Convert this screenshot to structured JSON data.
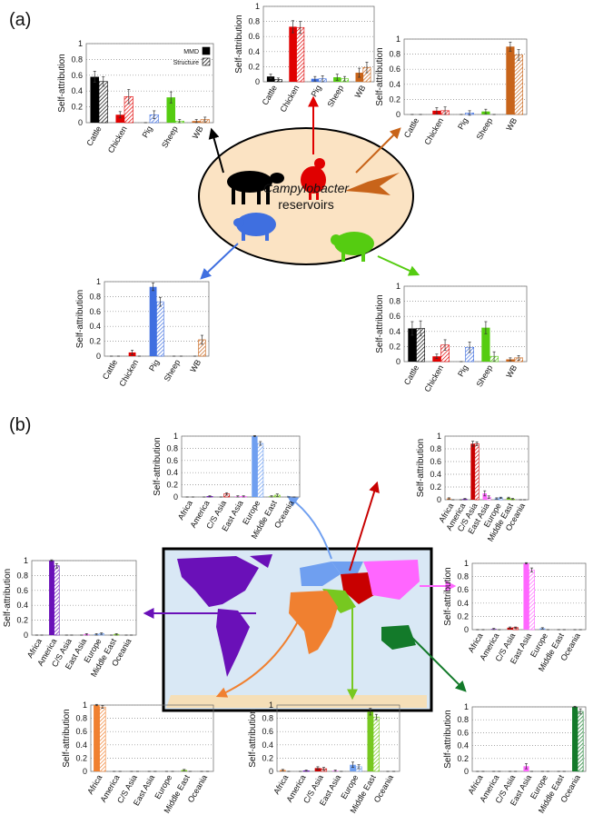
{
  "panels": [
    "(a)",
    "(b)"
  ],
  "center_label": {
    "italic": "Campylobacter",
    "text": "reservoirs"
  },
  "chart_data": [
    {
      "type": "bar",
      "ylabel": "Self-attribution",
      "ylim": [
        0,
        1
      ],
      "yticks": [
        0,
        0.2,
        0.4,
        0.6,
        0.8,
        1
      ],
      "grid": true,
      "legend": "upper right",
      "categories": [
        "Cattle",
        "Chicken",
        "Pig",
        "Sheep",
        "WB"
      ],
      "colors": [
        "#000000",
        "#e00000",
        "#3f6fe0",
        "#55cc11",
        "#c8641a"
      ],
      "series": [
        {
          "name": "MMD",
          "color": "#000000",
          "values": [
            0.58,
            0.1,
            0,
            0.32,
            0.02
          ],
          "errors": [
            0.07,
            0.04,
            0,
            0.07,
            0.02
          ]
        },
        {
          "name": "Structure",
          "color": "#000000",
          "values": [
            0.52,
            0.33,
            0.1,
            0.02,
            0.04
          ],
          "errors": [
            0.06,
            0.09,
            0.05,
            0.02,
            0.03
          ]
        }
      ]
    },
    {
      "type": "bar",
      "ylabel": "Self-attribution",
      "ylim": [
        0,
        1
      ],
      "yticks": [
        0,
        0.2,
        0.4,
        0.6,
        0.8,
        1
      ],
      "grid": true,
      "categories": [
        "Cattle",
        "Chicken",
        "Pig",
        "Sheep",
        "WB"
      ],
      "colors": [
        "#000000",
        "#e00000",
        "#3f6fe0",
        "#55cc11",
        "#c8641a"
      ],
      "series": [
        {
          "values": [
            0.07,
            0.73,
            0.04,
            0.06,
            0.12
          ],
          "errors": [
            0.03,
            0.08,
            0.03,
            0.04,
            0.06
          ]
        },
        {
          "values": [
            0.03,
            0.72,
            0.04,
            0.04,
            0.19
          ],
          "errors": [
            0.02,
            0.08,
            0.04,
            0.03,
            0.07
          ]
        }
      ]
    },
    {
      "type": "bar",
      "ylabel": "Self-attribution",
      "ylim": [
        0,
        1
      ],
      "yticks": [
        0,
        0.2,
        0.4,
        0.6,
        0.8,
        1
      ],
      "grid": true,
      "categories": [
        "Cattle",
        "Chicken",
        "Pig",
        "Sheep",
        "WB"
      ],
      "colors": [
        "#000000",
        "#e00000",
        "#3f6fe0",
        "#55cc11",
        "#c8641a"
      ],
      "series": [
        {
          "values": [
            0,
            0.05,
            0,
            0.04,
            0.9
          ],
          "errors": [
            0,
            0.04,
            0,
            0.03,
            0.06
          ]
        },
        {
          "values": [
            0,
            0.05,
            0.02,
            0,
            0.79
          ],
          "errors": [
            0,
            0.05,
            0.03,
            0,
            0.07
          ]
        }
      ]
    },
    {
      "type": "bar",
      "ylabel": "Self-attribution",
      "ylim": [
        0,
        1
      ],
      "yticks": [
        0,
        0.2,
        0.4,
        0.6,
        0.8,
        1
      ],
      "grid": true,
      "categories": [
        "Cattle",
        "Chicken",
        "Pig",
        "Sheep",
        "WB"
      ],
      "colors": [
        "#000000",
        "#e00000",
        "#3f6fe0",
        "#55cc11",
        "#c8641a"
      ],
      "series": [
        {
          "values": [
            0,
            0.05,
            0.93,
            0,
            0
          ],
          "errors": [
            0,
            0.03,
            0.05,
            0,
            0
          ]
        },
        {
          "values": [
            0,
            0,
            0.73,
            0,
            0.22
          ],
          "errors": [
            0,
            0,
            0.06,
            0,
            0.06
          ]
        }
      ]
    },
    {
      "type": "bar",
      "ylabel": "Self-attribution",
      "ylim": [
        0,
        1
      ],
      "yticks": [
        0,
        0.2,
        0.4,
        0.6,
        0.8,
        1
      ],
      "grid": true,
      "categories": [
        "Cattle",
        "Chicken",
        "Pig",
        "Sheep",
        "WB"
      ],
      "colors": [
        "#000000",
        "#e00000",
        "#3f6fe0",
        "#55cc11",
        "#c8641a"
      ],
      "series": [
        {
          "values": [
            0.44,
            0.07,
            0,
            0.45,
            0.03
          ],
          "errors": [
            0.09,
            0.03,
            0,
            0.08,
            0.02
          ]
        },
        {
          "values": [
            0.44,
            0.22,
            0.19,
            0.07,
            0.05
          ],
          "errors": [
            0.1,
            0.07,
            0.07,
            0.06,
            0.03
          ]
        }
      ]
    },
    {
      "type": "bar",
      "ylabel": "Self-attribution",
      "ylim": [
        0,
        1
      ],
      "yticks": [
        0,
        0.2,
        0.4,
        0.6,
        0.8,
        1
      ],
      "grid": true,
      "categories": [
        "Africa",
        "America",
        "C/S Asia",
        "East Asia",
        "Europe",
        "Middle East",
        "Oceania"
      ],
      "colors": [
        "#f08030",
        "#6a10b8",
        "#c80000",
        "#ff66ff",
        "#6f9ff0",
        "#77c820",
        "#137a2a"
      ],
      "series": [
        {
          "values": [
            0,
            0,
            0,
            0.01,
            1,
            0.01,
            0
          ],
          "errors": [
            0,
            0,
            0,
            0.01,
            0.01,
            0.01,
            0
          ]
        },
        {
          "values": [
            0,
            0.01,
            0.05,
            0.01,
            0.88,
            0.03,
            0
          ],
          "errors": [
            0,
            0.01,
            0.02,
            0.01,
            0.03,
            0.02,
            0
          ]
        }
      ]
    },
    {
      "type": "bar",
      "ylabel": "Self-attribution",
      "ylim": [
        0,
        1
      ],
      "yticks": [
        0,
        0.2,
        0.4,
        0.6,
        0.8,
        1
      ],
      "grid": true,
      "categories": [
        "Africa",
        "America",
        "C/S Asia",
        "East Asia",
        "Europe",
        "Middle East",
        "Oceania"
      ],
      "colors": [
        "#f08030",
        "#6a10b8",
        "#c80000",
        "#ff66ff",
        "#6f9ff0",
        "#77c820",
        "#137a2a"
      ],
      "series": [
        {
          "values": [
            0.02,
            0,
            0.88,
            0.1,
            0.02,
            0.03,
            0
          ],
          "errors": [
            0.01,
            0,
            0.04,
            0.04,
            0.01,
            0.01,
            0
          ]
        },
        {
          "values": [
            0,
            0.01,
            0.88,
            0.04,
            0.03,
            0.01,
            0
          ],
          "errors": [
            0,
            0.01,
            0.03,
            0.02,
            0.01,
            0.01,
            0
          ]
        }
      ]
    },
    {
      "type": "bar",
      "ylabel": "Self-attribution",
      "ylim": [
        0,
        1
      ],
      "yticks": [
        0,
        0.2,
        0.4,
        0.6,
        0.8,
        1
      ],
      "grid": true,
      "categories": [
        "Africa",
        "America",
        "C/S Asia",
        "East Asia",
        "Europe",
        "Middle East",
        "Oceania"
      ],
      "colors": [
        "#f08030",
        "#6a10b8",
        "#c80000",
        "#ff66ff",
        "#6f9ff0",
        "#77c820",
        "#137a2a"
      ],
      "series": [
        {
          "values": [
            0,
            1,
            0,
            0,
            0.01,
            0,
            0
          ],
          "errors": [
            0,
            0.01,
            0,
            0,
            0.01,
            0,
            0
          ]
        },
        {
          "values": [
            0,
            0.93,
            0,
            0.01,
            0.02,
            0.01,
            0
          ],
          "errors": [
            0,
            0.03,
            0,
            0.01,
            0.01,
            0.01,
            0
          ]
        }
      ]
    },
    {
      "type": "bar",
      "ylabel": "Self-attribution",
      "ylim": [
        0,
        1
      ],
      "yticks": [
        0,
        0.2,
        0.4,
        0.6,
        0.8,
        1
      ],
      "grid": true,
      "categories": [
        "Africa",
        "America",
        "C/S Asia",
        "East Asia",
        "Europe",
        "Middle East",
        "Oceania"
      ],
      "colors": [
        "#f08030",
        "#6a10b8",
        "#c80000",
        "#ff66ff",
        "#6f9ff0",
        "#77c820",
        "#137a2a"
      ],
      "series": [
        {
          "values": [
            0,
            0.01,
            0.03,
            1,
            0.02,
            0,
            0
          ],
          "errors": [
            0,
            0.01,
            0.01,
            0.01,
            0.01,
            0,
            0
          ]
        },
        {
          "values": [
            0,
            0,
            0.03,
            0.9,
            0,
            0,
            0
          ],
          "errors": [
            0,
            0,
            0.01,
            0.03,
            0,
            0,
            0
          ]
        }
      ]
    },
    {
      "type": "bar",
      "ylabel": "Self-attribution",
      "ylim": [
        0,
        1
      ],
      "yticks": [
        0,
        0.2,
        0.4,
        0.6,
        0.8,
        1
      ],
      "grid": true,
      "categories": [
        "Africa",
        "America",
        "C/S Asia",
        "East Asia",
        "Europe",
        "Middle East",
        "Oceania"
      ],
      "colors": [
        "#f08030",
        "#6a10b8",
        "#c80000",
        "#ff66ff",
        "#6f9ff0",
        "#77c820",
        "#137a2a"
      ],
      "series": [
        {
          "values": [
            1,
            0,
            0,
            0,
            0,
            0.02,
            0
          ],
          "errors": [
            0.01,
            0,
            0,
            0,
            0,
            0.01,
            0
          ]
        },
        {
          "values": [
            0.97,
            0,
            0,
            0,
            0,
            0,
            0
          ],
          "errors": [
            0.02,
            0,
            0,
            0,
            0,
            0,
            0
          ]
        }
      ]
    },
    {
      "type": "bar",
      "ylabel": "Self-attribution",
      "ylim": [
        0,
        1
      ],
      "yticks": [
        0,
        0.2,
        0.4,
        0.6,
        0.8,
        1
      ],
      "grid": true,
      "categories": [
        "Africa",
        "America",
        "C/S Asia",
        "East Asia",
        "Europe",
        "Middle East",
        "Oceania"
      ],
      "colors": [
        "#f08030",
        "#6a10b8",
        "#c80000",
        "#ff66ff",
        "#6f9ff0",
        "#77c820",
        "#137a2a"
      ],
      "series": [
        {
          "values": [
            0.02,
            0,
            0.05,
            0.01,
            0.1,
            0.9,
            0
          ],
          "errors": [
            0.01,
            0,
            0.02,
            0.01,
            0.04,
            0.05,
            0
          ]
        },
        {
          "values": [
            0,
            0.01,
            0.04,
            0,
            0.07,
            0.82,
            0
          ],
          "errors": [
            0,
            0.01,
            0.02,
            0,
            0.03,
            0.04,
            0
          ]
        }
      ]
    },
    {
      "type": "bar",
      "ylabel": "Self-attribution",
      "ylim": [
        0,
        1
      ],
      "yticks": [
        0,
        0.2,
        0.4,
        0.6,
        0.8,
        1
      ],
      "grid": true,
      "categories": [
        "Africa",
        "America",
        "C/S Asia",
        "East Asia",
        "Europe",
        "Middle East",
        "Oceania"
      ],
      "colors": [
        "#f08030",
        "#6a10b8",
        "#c80000",
        "#ff66ff",
        "#6f9ff0",
        "#77c820",
        "#137a2a"
      ],
      "series": [
        {
          "values": [
            0,
            0,
            0,
            0.08,
            0,
            0,
            1
          ],
          "errors": [
            0,
            0,
            0,
            0.04,
            0,
            0,
            0.01
          ]
        },
        {
          "values": [
            0,
            0,
            0,
            0,
            0,
            0,
            0.93
          ],
          "errors": [
            0,
            0,
            0,
            0,
            0,
            0,
            0.04
          ]
        }
      ]
    }
  ]
}
